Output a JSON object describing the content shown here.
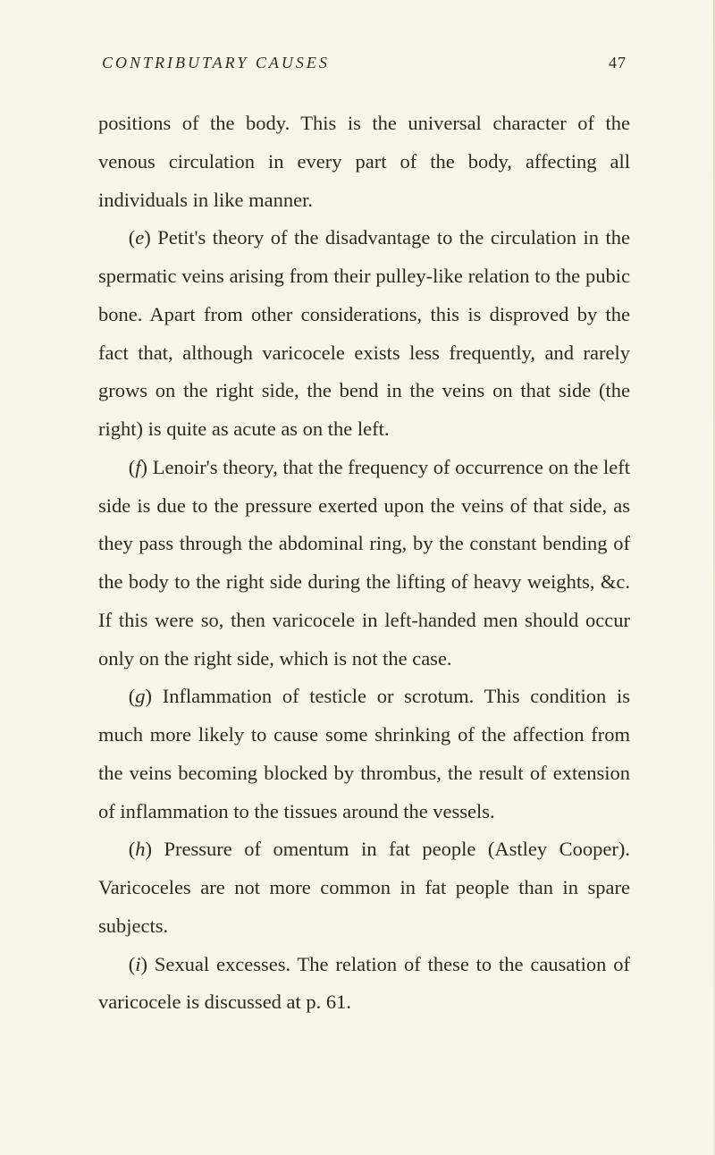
{
  "page": {
    "running_title": "CONTRIBUTARY CAUSES",
    "page_number": "47",
    "background_color": "#f9f5ea",
    "text_color": "#2e2a22",
    "font_family": "Georgia, 'Times New Roman', serif",
    "body_font_size_pt": 17,
    "line_height": 1.9,
    "paragraphs": [
      "positions of the body. This is the universal character of the venous circulation in every part of the body, affecting all individuals in like manner.",
      "(e) Petit's theory of the disadvantage to the circulation in the spermatic veins arising from their pulley-like relation to the pubic bone. Apart from other considerations, this is disproved by the fact that, although varicocele exists less frequently, and rarely grows on the right side, the bend in the veins on that side (the right) is quite as acute as on the left.",
      "(f) Lenoir's theory, that the frequency of occurrence on the left side is due to the pressure exerted upon the veins of that side, as they pass through the abdominal ring, by the constant bending of the body to the right side during the lifting of heavy weights, &c. If this were so, then varicocele in left-handed men should occur only on the right side, which is not the case.",
      "(g) Inflammation of testicle or scrotum. This condition is much more likely to cause some shrinking of the affection from the veins becoming blocked by thrombus, the result of extension of inflammation to the tissues around the vessels.",
      "(h) Pressure of omentum in fat people (Astley Cooper). Varicoceles are not more common in fat people than in spare subjects.",
      "(i) Sexual excesses. The relation of these to the causation of varicocele is discussed at p. 61."
    ]
  }
}
